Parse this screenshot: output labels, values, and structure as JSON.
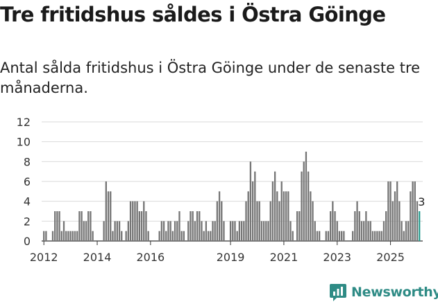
{
  "title": "Tre fritidshus såldes i Östra Göinge",
  "subtitle": "Antal sålda fritidshus i Östra Göinge under de senaste tre månaderna.",
  "brand": "Newsworthy",
  "colors": {
    "bar": "#757575",
    "highlight": "#2a9d8f",
    "grid": "#d9d9d9",
    "brand": "#2e8b85"
  },
  "chart_data": {
    "type": "bar",
    "title": "Tre fritidshus såldes i Östra Göinge",
    "xlabel": "",
    "ylabel": "",
    "ylim": [
      0,
      12
    ],
    "yticks": [
      0,
      2,
      4,
      6,
      8,
      10,
      12
    ],
    "grid": true,
    "start": "2012-01",
    "frequency": "monthly",
    "xticks": [
      {
        "label": "2012",
        "index": 0
      },
      {
        "label": "2014",
        "index": 24
      },
      {
        "label": "2016",
        "index": 48
      },
      {
        "label": "2019",
        "index": 84
      },
      {
        "label": "2021",
        "index": 108
      },
      {
        "label": "2023",
        "index": 132
      },
      {
        "label": "2025",
        "index": 156
      }
    ],
    "values": [
      1,
      1,
      0,
      0,
      1,
      3,
      3,
      3,
      1,
      2,
      1,
      1,
      1,
      1,
      1,
      1,
      3,
      3,
      2,
      2,
      3,
      3,
      1,
      0,
      0,
      0,
      0,
      2,
      6,
      5,
      5,
      1,
      2,
      2,
      2,
      1,
      0,
      1,
      2,
      4,
      4,
      4,
      4,
      3,
      3,
      4,
      3,
      1,
      0,
      0,
      0,
      0,
      1,
      2,
      2,
      1,
      2,
      2,
      1,
      2,
      2,
      3,
      1,
      1,
      0,
      2,
      3,
      3,
      2,
      3,
      3,
      2,
      1,
      2,
      1,
      1,
      2,
      2,
      4,
      5,
      4,
      2,
      0,
      0,
      2,
      2,
      2,
      1,
      2,
      2,
      2,
      4,
      5,
      8,
      6,
      7,
      4,
      4,
      2,
      2,
      2,
      2,
      4,
      6,
      7,
      5,
      4,
      6,
      5,
      5,
      5,
      2,
      1,
      0,
      3,
      3,
      7,
      8,
      9,
      7,
      5,
      4,
      2,
      1,
      1,
      0,
      0,
      1,
      1,
      3,
      4,
      3,
      2,
      1,
      1,
      1,
      0,
      0,
      0,
      1,
      3,
      4,
      3,
      2,
      2,
      3,
      2,
      2,
      1,
      1,
      1,
      1,
      1,
      2,
      3,
      6,
      6,
      4,
      5,
      6,
      4,
      2,
      1,
      2,
      2,
      5,
      6,
      6,
      4,
      3
    ],
    "annotation": {
      "index": 169,
      "label": "3"
    }
  }
}
